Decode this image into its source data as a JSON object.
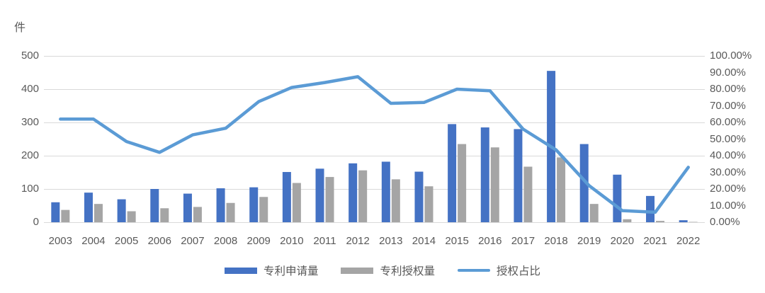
{
  "chart_data": {
    "type": "bar+line",
    "unit_label": "件",
    "title": "",
    "categories": [
      "2003",
      "2004",
      "2005",
      "2006",
      "2007",
      "2008",
      "2009",
      "2010",
      "2011",
      "2012",
      "2013",
      "2014",
      "2015",
      "2016",
      "2017",
      "2018",
      "2019",
      "2020",
      "2021",
      "2022"
    ],
    "series": [
      {
        "name": "专利申请量",
        "type": "bar",
        "axis": "left",
        "color": "#4472C4",
        "values": [
          60,
          89,
          69,
          100,
          86,
          102,
          105,
          151,
          161,
          177,
          182,
          152,
          295,
          285,
          280,
          455,
          235,
          143,
          79,
          6
        ]
      },
      {
        "name": "专利授权量",
        "type": "bar",
        "axis": "left",
        "color": "#A5A5A5",
        "values": [
          37,
          55,
          33,
          42,
          46,
          58,
          76,
          118,
          136,
          156,
          129,
          108,
          235,
          225,
          167,
          195,
          55,
          9,
          4,
          1
        ]
      },
      {
        "name": "授权占比",
        "type": "line",
        "axis": "right",
        "unit": "%",
        "color": "#5B9BD5",
        "values": [
          62,
          62,
          48.5,
          42,
          52.5,
          56.5,
          72.5,
          81,
          84,
          87.5,
          71.5,
          72,
          80,
          79,
          56,
          43.5,
          22,
          7,
          6,
          33
        ]
      }
    ],
    "left_axis": {
      "min": 0,
      "max": 500,
      "ticks": [
        "500",
        "400",
        "300",
        "200",
        "100",
        "0"
      ],
      "tick_values": [
        500,
        400,
        300,
        200,
        100,
        0
      ]
    },
    "right_axis": {
      "min": 0,
      "max": 100,
      "ticks": [
        "100.00%",
        "90.00%",
        "80.00%",
        "70.00%",
        "60.00%",
        "50.00%",
        "40.00%",
        "30.00%",
        "20.00%",
        "10.00%",
        "0.00%"
      ],
      "tick_values": [
        100,
        90,
        80,
        70,
        60,
        50,
        40,
        30,
        20,
        10,
        0
      ]
    },
    "grid": {
      "horizontal": true,
      "color": "#D9D9D9"
    },
    "legend_position": "bottom"
  }
}
